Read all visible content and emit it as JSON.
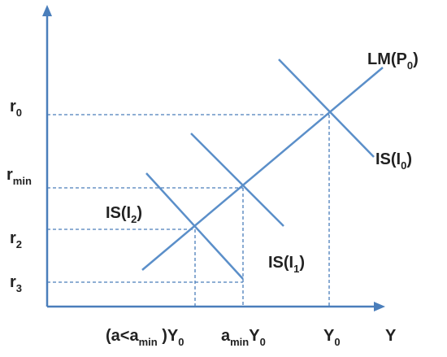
{
  "colors": {
    "axis": "#4a7ebb",
    "curve": "#5b8fc9",
    "guide": "#4a7ebb",
    "text": "#222222"
  },
  "labels": {
    "lm": {
      "base": "LM(P",
      "sub": "0",
      "close": ")"
    },
    "is0": {
      "base": "IS(I",
      "sub": "0",
      "close": ")"
    },
    "is1": {
      "base": "IS(I",
      "sub": "1",
      "close": ")"
    },
    "is2": {
      "base": "IS(I",
      "sub": "2",
      "close": ")"
    },
    "y_axis_ticks": {
      "r0": {
        "base": "r",
        "sub": "0"
      },
      "rmin": {
        "base": "r",
        "sub": "min"
      },
      "r2": {
        "base": "r",
        "sub": "2"
      },
      "r3": {
        "base": "r",
        "sub": "3"
      }
    },
    "x_axis_ticks": {
      "a_less": {
        "pre": "(a<a",
        "sub": "min",
        "post": " )Y",
        "sub2": "0"
      },
      "amin_y0": {
        "pre": "a",
        "sub": "min",
        "post": "Y",
        "sub2": "0"
      },
      "y0": {
        "base": "Y",
        "sub": "0"
      }
    },
    "x_axis_name": "Y"
  }
}
